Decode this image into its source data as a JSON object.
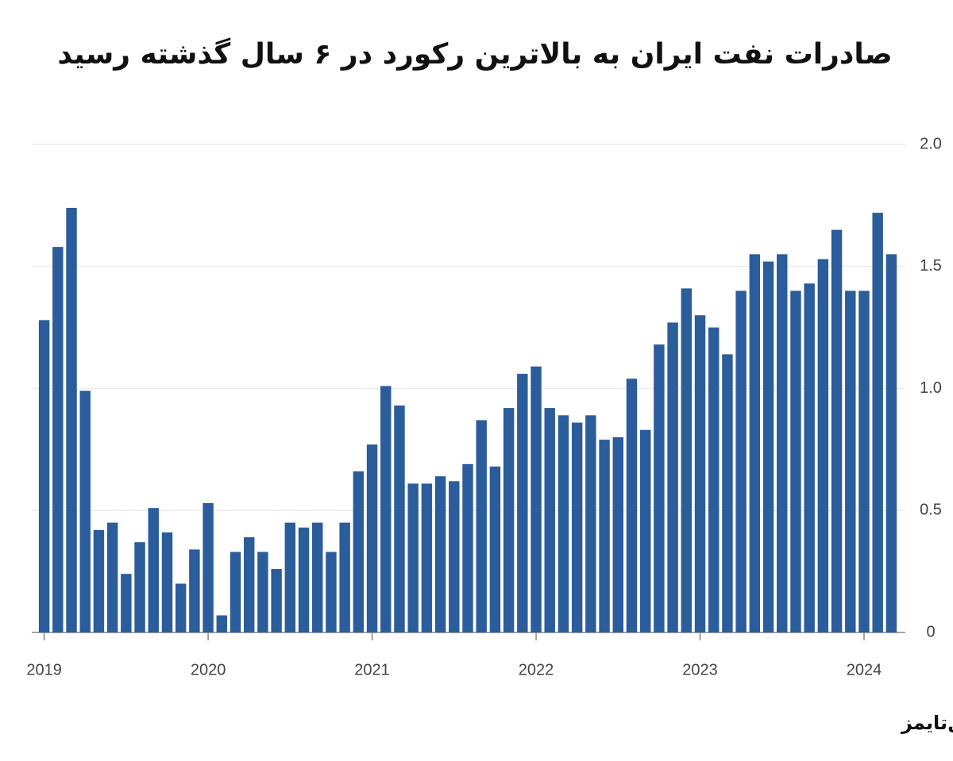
{
  "chart_data": {
    "type": "bar",
    "title": "صادرات نفت ایران به بالاترین رکورد در ۶ سال گذشته رسید",
    "source": "منبع:فایننشال‌تایمز",
    "categories": [
      "2019",
      null,
      null,
      null,
      null,
      null,
      null,
      null,
      null,
      null,
      null,
      null,
      "2020",
      null,
      null,
      null,
      null,
      null,
      null,
      null,
      null,
      null,
      null,
      null,
      "2021",
      null,
      null,
      null,
      null,
      null,
      null,
      null,
      null,
      null,
      null,
      null,
      "2022",
      null,
      null,
      null,
      null,
      null,
      null,
      null,
      null,
      null,
      null,
      null,
      "2023",
      null,
      null,
      null,
      null,
      null,
      null,
      null,
      null,
      null,
      null,
      null,
      "2024",
      null,
      null
    ],
    "values": [
      1.28,
      1.58,
      1.74,
      0.99,
      0.42,
      0.45,
      0.24,
      0.37,
      0.51,
      0.41,
      0.2,
      0.34,
      0.53,
      0.07,
      0.33,
      0.39,
      0.33,
      0.26,
      0.45,
      0.43,
      0.45,
      0.33,
      0.45,
      0.66,
      0.77,
      1.01,
      0.93,
      0.61,
      0.61,
      0.64,
      0.62,
      0.69,
      0.87,
      0.68,
      0.92,
      1.06,
      1.09,
      0.92,
      0.89,
      0.86,
      0.89,
      0.79,
      0.8,
      1.04,
      0.83,
      1.18,
      1.27,
      1.41,
      1.3,
      1.25,
      1.14,
      1.4,
      1.55,
      1.52,
      1.55,
      1.4,
      1.43,
      1.53,
      1.65,
      1.4,
      1.4,
      1.72,
      1.55
    ],
    "color": "#2b5c9b",
    "ylim": [
      0,
      2.0
    ],
    "yticks": [
      0,
      0.5,
      {
        "value": 1.0,
        "label": "1.0"
      },
      1.5,
      {
        "value": 2.0,
        "label": "2.0"
      }
    ],
    "grid": true
  }
}
